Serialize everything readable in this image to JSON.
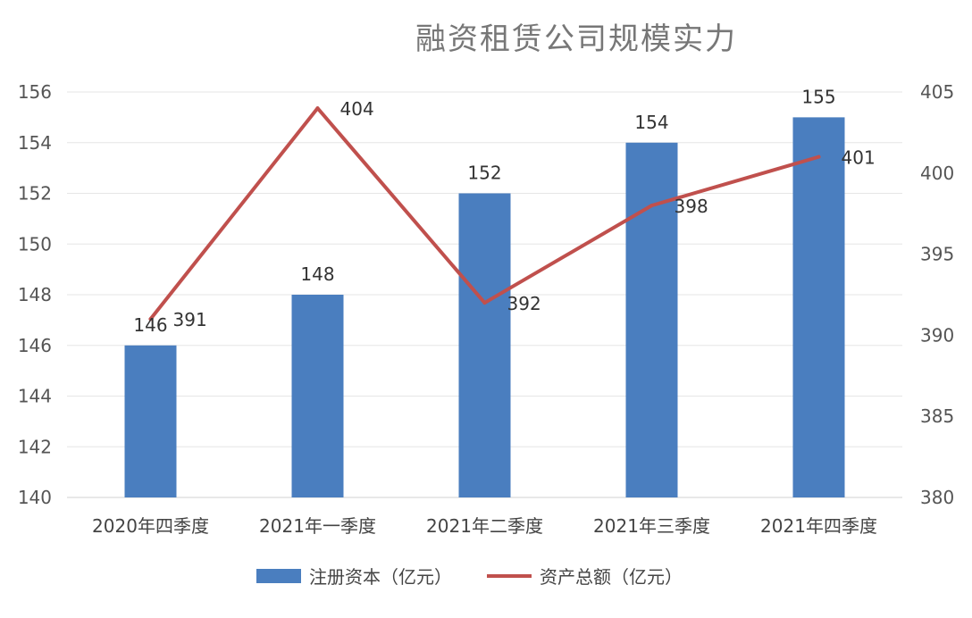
{
  "chart_data": {
    "type": "bar",
    "title": "融资租赁公司规模实力",
    "categories": [
      "2020年四季度",
      "2021年一季度",
      "2021年二季度",
      "2021年三季度",
      "2021年四季度"
    ],
    "series": [
      {
        "name": "注册资本（亿元）",
        "type": "bar",
        "axis": "left",
        "values": [
          146,
          148,
          152,
          154,
          155
        ],
        "color": "#4a7ebf"
      },
      {
        "name": "资产总额（亿元）",
        "type": "line",
        "axis": "right",
        "values": [
          391,
          404,
          392,
          398,
          401
        ],
        "color": "#c0504d"
      }
    ],
    "y_left": {
      "min": 140,
      "max": 156,
      "ticks": [
        "140",
        "142",
        "144",
        "146",
        "148",
        "150",
        "152",
        "154",
        "156"
      ]
    },
    "y_right": {
      "min": 380,
      "max": 405,
      "ticks": [
        "380",
        "385",
        "390",
        "395",
        "400",
        "405"
      ]
    },
    "grid": true,
    "legend": "bottom"
  }
}
